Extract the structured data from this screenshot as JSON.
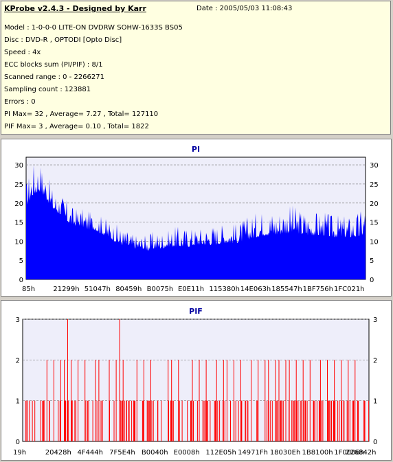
{
  "header": {
    "title": "KProbe v2.4.3 - Designed by Karr",
    "date": "Date : 2005/05/03 11:08:43"
  },
  "info_lines": [
    "Model : 1-0-0-0 LITE-ON DVDRW SOHW-1633S BS05",
    "Disc : DVD-R , OPTODI [Opto Disc]",
    "Speed : 4x",
    "ECC blocks sum (PI/PIF) : 8/1",
    "Scanned range : 0 - 2266271",
    "Sampling count : 123881",
    "Errors : 0",
    "PI Max= 32 , Average= 7.27 , Total= 127110",
    "PIF Max= 3 , Average= 0.10 , Total= 1822"
  ],
  "colors": {
    "pi_fill": "#0000ff",
    "pif_bar": "#ff0000",
    "plot_bg": "#eeeefa",
    "title_color": "#0000a0"
  },
  "chart_data": [
    {
      "type": "area",
      "title": "PI",
      "ylim": [
        0,
        32
      ],
      "yticks": [
        "0",
        "5",
        "10",
        "15",
        "20",
        "25",
        "30"
      ],
      "xtick_labels": [
        "85h",
        "21299h",
        "51047h",
        "80459h",
        "B0075h",
        "E0E11h",
        "115380h",
        "14E063h",
        "185547h",
        "1BF756h",
        "1FC021h"
      ],
      "grid": true,
      "series": [
        {
          "x_fraction": [
            0.0,
            0.02,
            0.04,
            0.06,
            0.08,
            0.1,
            0.12,
            0.14,
            0.16,
            0.18,
            0.2,
            0.22,
            0.24,
            0.26,
            0.28,
            0.3,
            0.32,
            0.34,
            0.36,
            0.38,
            0.4,
            0.42,
            0.44,
            0.46,
            0.48,
            0.5,
            0.52,
            0.54,
            0.56,
            0.58,
            0.6,
            0.62,
            0.64,
            0.66,
            0.68,
            0.7,
            0.72,
            0.74,
            0.76,
            0.78,
            0.8,
            0.82,
            0.84,
            0.86,
            0.88,
            0.9,
            0.92,
            0.94,
            0.96,
            0.98,
            1.0
          ],
          "y_base": [
            19,
            22,
            23,
            21,
            18,
            17,
            15,
            14,
            14,
            13,
            13,
            12,
            11,
            10,
            9,
            8.5,
            8,
            8,
            7.5,
            8,
            8,
            8.5,
            8.5,
            8.5,
            8.5,
            9,
            9,
            9,
            9,
            9.5,
            9.5,
            9.5,
            10,
            10.5,
            11,
            11.5,
            11.5,
            11.5,
            12,
            12,
            12,
            11.5,
            11.5,
            11.5,
            11.5,
            11,
            11,
            11,
            11,
            11,
            12
          ],
          "y_peak": [
            26,
            31,
            32,
            28,
            24,
            23,
            21,
            19,
            19,
            18,
            18,
            17,
            16,
            15,
            14,
            13,
            12,
            12,
            12,
            13,
            13,
            13,
            14,
            14,
            14,
            14,
            14,
            15,
            15,
            15,
            15,
            15,
            16,
            17,
            18,
            19,
            19,
            19,
            20,
            20,
            19,
            19,
            18,
            18,
            18,
            17,
            17,
            17,
            17,
            18,
            21
          ]
        }
      ]
    },
    {
      "type": "bar",
      "title": "PIF",
      "ylim": [
        0,
        3
      ],
      "yticks": [
        "0",
        "1",
        "2",
        "3"
      ],
      "xtick_labels": [
        "19h",
        "20428h",
        "4F444h",
        "7F5E4h",
        "B0040h",
        "E0008h",
        "112E05h",
        "14971Fh",
        "18030Eh",
        "1B8100h",
        "1F0006h",
        "226842h"
      ],
      "grid": true,
      "series": [
        {
          "peaks3_at_fraction": [
            0.13,
            0.28
          ],
          "twos_at_fraction": [
            0.07,
            0.09,
            0.11,
            0.12,
            0.14,
            0.16,
            0.18,
            0.21,
            0.22,
            0.25,
            0.27,
            0.29,
            0.33,
            0.35,
            0.37,
            0.42,
            0.43,
            0.45,
            0.49,
            0.51,
            0.53,
            0.56,
            0.58,
            0.59,
            0.61,
            0.63,
            0.66,
            0.68,
            0.7,
            0.71,
            0.73,
            0.74,
            0.76,
            0.77,
            0.79,
            0.81,
            0.83,
            0.86,
            0.88,
            0.9,
            0.92,
            0.94,
            0.96
          ]
        }
      ]
    }
  ]
}
